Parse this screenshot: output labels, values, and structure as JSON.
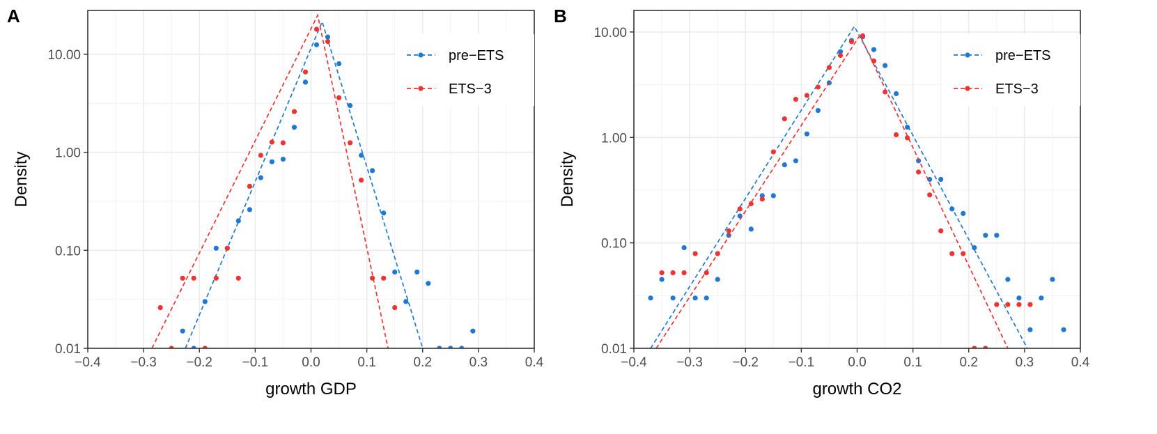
{
  "chart_data": [
    {
      "type": "scatter",
      "panel_label": "A",
      "xlabel": "growth GDP",
      "ylabel": "Density",
      "xlim": [
        -0.4,
        0.4
      ],
      "ylim": [
        0.01,
        28
      ],
      "yscale": "log",
      "x_ticks": [
        -0.4,
        -0.3,
        -0.2,
        -0.1,
        0.0,
        0.1,
        0.2,
        0.3,
        0.4
      ],
      "x_tick_labels": [
        "−0.4",
        "−0.3",
        "−0.2",
        "−0.1",
        "0.0",
        "0.1",
        "0.2",
        "0.3",
        "0.4"
      ],
      "y_ticks": [
        0.01,
        0.1,
        1,
        10
      ],
      "y_tick_labels": [
        "0.01",
        "0.10",
        "1.00",
        "10.00"
      ],
      "grid": true,
      "legend_position": "top-right",
      "series": [
        {
          "name": "pre−ETS",
          "color": "#1f78d1",
          "points": [
            [
              -0.23,
              0.015
            ],
            [
              -0.21,
              0.01
            ],
            [
              -0.19,
              0.03
            ],
            [
              -0.17,
              0.105
            ],
            [
              -0.15,
              0.105
            ],
            [
              -0.13,
              0.2
            ],
            [
              -0.11,
              0.26
            ],
            [
              -0.09,
              0.55
            ],
            [
              -0.07,
              0.8
            ],
            [
              -0.05,
              0.85
            ],
            [
              -0.03,
              1.8
            ],
            [
              -0.01,
              5.2
            ],
            [
              0.01,
              12.5
            ],
            [
              0.03,
              15
            ],
            [
              0.05,
              8
            ],
            [
              0.07,
              3
            ],
            [
              0.09,
              0.93
            ],
            [
              0.11,
              0.65
            ],
            [
              0.13,
              0.24
            ],
            [
              0.15,
              0.06
            ],
            [
              0.17,
              0.03
            ],
            [
              0.19,
              0.06
            ],
            [
              0.21,
              0.046
            ],
            [
              0.23,
              0.01
            ],
            [
              0.25,
              0.01
            ],
            [
              0.27,
              0.01
            ],
            [
              0.29,
              0.015
            ]
          ],
          "fit_line": [
            [
              -0.225,
              0.01
            ],
            [
              0.02,
              21.5
            ],
            [
              0.2,
              0.01
            ]
          ]
        },
        {
          "name": "ETS−3",
          "color": "#ee3333",
          "points": [
            [
              -0.27,
              0.026
            ],
            [
              -0.25,
              0.01
            ],
            [
              -0.23,
              0.052
            ],
            [
              -0.21,
              0.052
            ],
            [
              -0.19,
              0.01
            ],
            [
              -0.17,
              0.052
            ],
            [
              -0.15,
              0.105
            ],
            [
              -0.13,
              0.052
            ],
            [
              -0.11,
              0.45
            ],
            [
              -0.09,
              0.93
            ],
            [
              -0.07,
              1.27
            ],
            [
              -0.05,
              1.25
            ],
            [
              -0.03,
              2.6
            ],
            [
              -0.01,
              6.6
            ],
            [
              0.01,
              18
            ],
            [
              0.03,
              13.5
            ],
            [
              0.05,
              3.6
            ],
            [
              0.07,
              1.25
            ],
            [
              0.09,
              0.52
            ],
            [
              0.11,
              0.052
            ],
            [
              0.13,
              0.052
            ],
            [
              0.15,
              0.026
            ]
          ],
          "fit_line": [
            [
              -0.285,
              0.01
            ],
            [
              0.012,
              25
            ],
            [
              0.138,
              0.01
            ]
          ]
        }
      ]
    },
    {
      "type": "scatter",
      "panel_label": "B",
      "xlabel": "growth CO2",
      "ylabel": "Density",
      "xlim": [
        -0.4,
        0.4
      ],
      "ylim": [
        0.01,
        16
      ],
      "yscale": "log",
      "x_ticks": [
        -0.4,
        -0.3,
        -0.2,
        -0.1,
        0.0,
        0.1,
        0.2,
        0.3,
        0.4
      ],
      "x_tick_labels": [
        "−0.4",
        "−0.3",
        "−0.2",
        "−0.1",
        "0.0",
        "0.1",
        "0.2",
        "0.3",
        "0.4"
      ],
      "y_ticks": [
        0.01,
        0.1,
        1,
        10
      ],
      "y_tick_labels": [
        "0.01",
        "0.10",
        "1.00",
        "10.00"
      ],
      "grid": true,
      "legend_position": "top-right",
      "series": [
        {
          "name": "pre−ETS",
          "color": "#1f78d1",
          "points": [
            [
              -0.37,
              0.03
            ],
            [
              -0.35,
              0.045
            ],
            [
              -0.33,
              0.03
            ],
            [
              -0.31,
              0.09
            ],
            [
              -0.29,
              0.03
            ],
            [
              -0.27,
              0.03
            ],
            [
              -0.25,
              0.045
            ],
            [
              -0.23,
              0.118
            ],
            [
              -0.21,
              0.18
            ],
            [
              -0.19,
              0.135
            ],
            [
              -0.17,
              0.28
            ],
            [
              -0.15,
              0.28
            ],
            [
              -0.13,
              0.55
            ],
            [
              -0.11,
              0.6
            ],
            [
              -0.09,
              1.08
            ],
            [
              -0.07,
              1.8
            ],
            [
              -0.05,
              3.3
            ],
            [
              -0.03,
              6.5
            ],
            [
              -0.01,
              8.3
            ],
            [
              0.01,
              9
            ],
            [
              0.03,
              6.8
            ],
            [
              0.05,
              4.8
            ],
            [
              0.07,
              2.6
            ],
            [
              0.09,
              1.25
            ],
            [
              0.11,
              0.6
            ],
            [
              0.13,
              0.4
            ],
            [
              0.15,
              0.4
            ],
            [
              0.17,
              0.21
            ],
            [
              0.19,
              0.19
            ],
            [
              0.21,
              0.09
            ],
            [
              0.23,
              0.118
            ],
            [
              0.25,
              0.118
            ],
            [
              0.27,
              0.045
            ],
            [
              0.29,
              0.03
            ],
            [
              0.31,
              0.015
            ],
            [
              0.33,
              0.03
            ],
            [
              0.35,
              0.045
            ],
            [
              0.37,
              0.015
            ]
          ],
          "fit_line": [
            [
              -0.37,
              0.01
            ],
            [
              -0.005,
              11.3
            ],
            [
              0.305,
              0.01
            ]
          ]
        },
        {
          "name": "ETS−3",
          "color": "#ee3333",
          "points": [
            [
              -0.35,
              0.052
            ],
            [
              -0.33,
              0.052
            ],
            [
              -0.31,
              0.052
            ],
            [
              -0.29,
              0.079
            ],
            [
              -0.27,
              0.052
            ],
            [
              -0.25,
              0.079
            ],
            [
              -0.23,
              0.13
            ],
            [
              -0.21,
              0.21
            ],
            [
              -0.19,
              0.235
            ],
            [
              -0.17,
              0.26
            ],
            [
              -0.15,
              0.73
            ],
            [
              -0.13,
              1.5
            ],
            [
              -0.11,
              2.3
            ],
            [
              -0.09,
              2.5
            ],
            [
              -0.07,
              3
            ],
            [
              -0.05,
              4.6
            ],
            [
              -0.03,
              6
            ],
            [
              -0.01,
              8.1
            ],
            [
              0.01,
              9.2
            ],
            [
              0.03,
              5.3
            ],
            [
              0.05,
              2.7
            ],
            [
              0.07,
              1.06
            ],
            [
              0.09,
              0.99
            ],
            [
              0.11,
              0.47
            ],
            [
              0.13,
              0.285
            ],
            [
              0.15,
              0.13
            ],
            [
              0.17,
              0.079
            ],
            [
              0.19,
              0.079
            ],
            [
              0.21,
              0.01
            ],
            [
              0.23,
              0.01
            ],
            [
              0.25,
              0.026
            ],
            [
              0.27,
              0.026
            ],
            [
              0.29,
              0.026
            ],
            [
              0.31,
              0.026
            ]
          ],
          "fit_line": [
            [
              -0.36,
              0.01
            ],
            [
              0.005,
              9.3
            ],
            [
              0.27,
              0.01
            ]
          ]
        }
      ]
    }
  ]
}
